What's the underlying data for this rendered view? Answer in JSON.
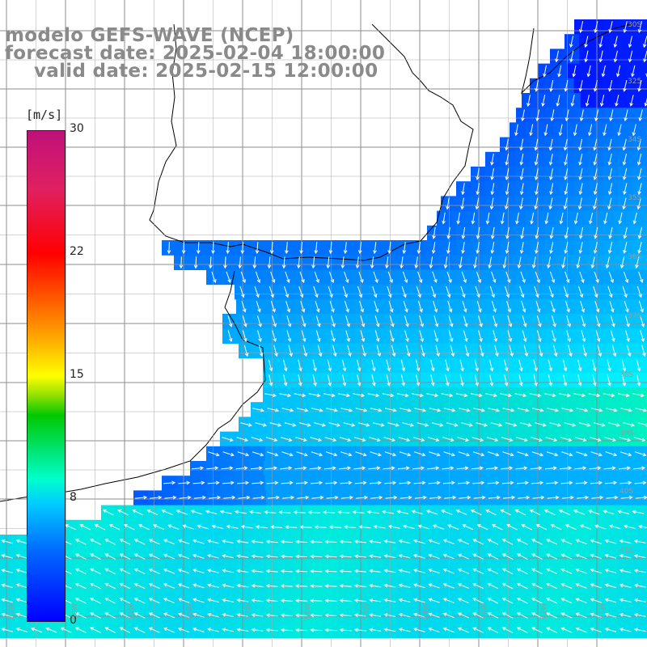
{
  "title": {
    "line1": "modelo GEFS-WAVE (NCEP)",
    "line2": "forecast date: 2025-02-04 18:00:00",
    "line3": "valid date: 2025-02-15 12:00:00"
  },
  "colorbar": {
    "unit": "[m/s]",
    "min": 0,
    "max": 30,
    "ticks": [
      "30",
      "22",
      "15",
      "8",
      "0"
    ],
    "tick_values": [
      30,
      22,
      15,
      8,
      0
    ],
    "stops": [
      "#0000ff",
      "#0066ff",
      "#00ccff",
      "#00ffcc",
      "#00e060",
      "#00c800",
      "#90e000",
      "#ffff00",
      "#ffb000",
      "#ff6000",
      "#ff0000",
      "#e02060",
      "#c0107a"
    ]
  },
  "map": {
    "land_color": "#ffffff",
    "coast_color": "#000000",
    "grid_color": "#8c8c8c",
    "arrow_color": "#ffffff",
    "lat_labels": [
      "30S",
      "325",
      "34S",
      "35S",
      "36S",
      "37S",
      "38S",
      "39S",
      "40S",
      "41S"
    ],
    "lon_labels": [
      "60W",
      "59W",
      "58W",
      "57W",
      "56W",
      "55W",
      "54W",
      "53W",
      "52W",
      "51W",
      "50W"
    ]
  }
}
